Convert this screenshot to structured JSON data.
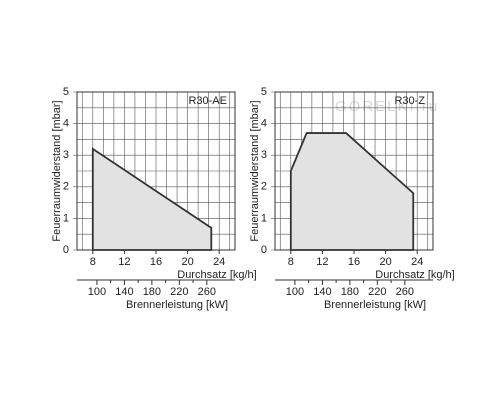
{
  "watermark": "GORELKI.ru",
  "chart_data": [
    {
      "type": "area",
      "title": "R30-AE",
      "ylabel": "Feuerraumwiderstand [mbar]",
      "xlabel": "Durchsatz [kg/h]",
      "x2label": "Brennerleistung [kW]",
      "x": [
        8,
        8,
        23,
        23
      ],
      "values": [
        0,
        3.2,
        0.7,
        0
      ],
      "color": "#333333",
      "fill": "#e2e2e2",
      "xlim": [
        6,
        26
      ],
      "xticks": [
        8,
        12,
        16,
        20,
        24
      ],
      "ylim": [
        0,
        5
      ],
      "yticks": [
        0,
        1,
        2,
        3,
        4,
        5
      ],
      "x2lim": [
        71,
        301
      ],
      "x2ticks": [
        100,
        140,
        180,
        220,
        260
      ],
      "grid": true
    },
    {
      "type": "area",
      "title": "R30-Z",
      "ylabel": "Feuerraumwiderstand [mbar]",
      "xlabel": "Durchsatz [kg/h]",
      "x2label": "Brennerleistung [kW]",
      "x": [
        8,
        8,
        10,
        15,
        23.5,
        23.5
      ],
      "values": [
        0,
        2.5,
        3.7,
        3.7,
        1.8,
        0
      ],
      "color": "#333333",
      "fill": "#e2e2e2",
      "xlim": [
        6,
        26
      ],
      "xticks": [
        8,
        12,
        16,
        20,
        24
      ],
      "ylim": [
        0,
        5
      ],
      "yticks": [
        0,
        1,
        2,
        3,
        4,
        5
      ],
      "x2lim": [
        71,
        301
      ],
      "x2ticks": [
        100,
        140,
        180,
        220,
        260
      ],
      "grid": true
    }
  ]
}
